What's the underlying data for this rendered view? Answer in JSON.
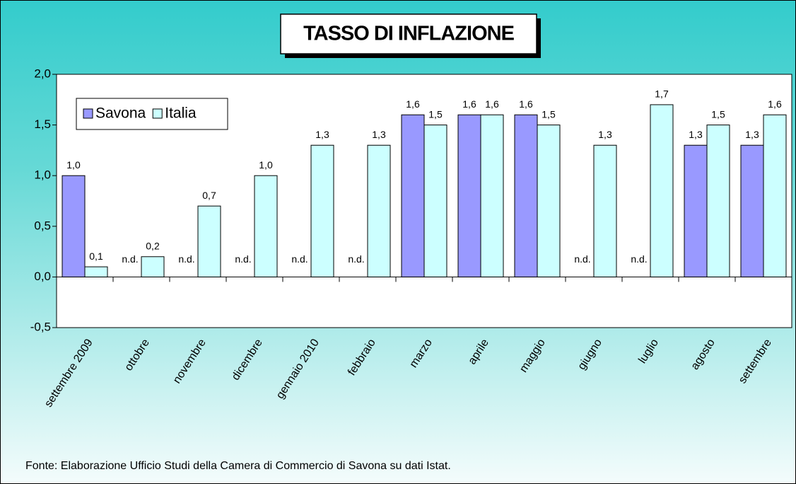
{
  "chart_data": {
    "type": "bar",
    "title": "TASSO DI INFLAZIONE",
    "categories": [
      "settembre 2009",
      "ottobre",
      "novembre",
      "dicembre",
      "gennaio 2010",
      "febbraio",
      "marzo",
      "aprile",
      "maggio",
      "giugno",
      "luglio",
      "agosto",
      "settembre"
    ],
    "series": [
      {
        "name": "Savona",
        "color": "#9999ff",
        "values": [
          1.0,
          null,
          null,
          null,
          null,
          null,
          1.6,
          1.6,
          1.6,
          null,
          null,
          1.3,
          1.3
        ],
        "value_labels": [
          "1,0",
          "n.d.",
          "n.d.",
          "n.d.",
          "n.d.",
          "n.d.",
          "1,6",
          "1,6",
          "1,6",
          "n.d.",
          "n.d.",
          "1,3",
          "1,3"
        ]
      },
      {
        "name": "Italia",
        "color": "#ccffff",
        "values": [
          0.1,
          0.2,
          0.7,
          1.0,
          1.3,
          1.3,
          1.5,
          1.6,
          1.5,
          1.3,
          1.7,
          1.5,
          1.6
        ],
        "value_labels": [
          "0,1",
          "0,2",
          "0,7",
          "1,0",
          "1,3",
          "1,3",
          "1,5",
          "1,6",
          "1,5",
          "1,3",
          "1,7",
          "1,5",
          "1,6"
        ]
      }
    ],
    "ylim": [
      -0.5,
      2.0
    ],
    "yticks": [
      {
        "value": -0.5,
        "label": "-0,5"
      },
      {
        "value": 0,
        "label": "0,0"
      },
      {
        "value": 0.5,
        "label": "0,5"
      },
      {
        "value": 1.0,
        "label": "1,0"
      },
      {
        "value": 1.5,
        "label": "1,5"
      },
      {
        "value": 2.0,
        "label": "2,0"
      }
    ],
    "grid": false,
    "legend": "upper left",
    "source": "Fonte: Elaborazione Ufficio Studi della Camera di Commercio di Savona su dati Istat."
  }
}
